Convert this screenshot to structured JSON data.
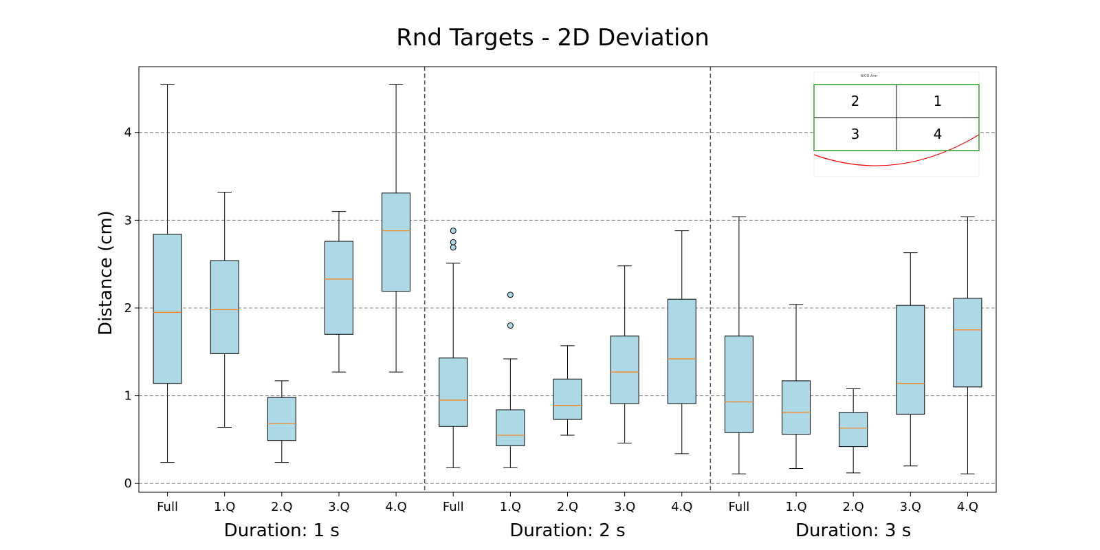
{
  "chart_data": {
    "type": "box",
    "title": "Rnd Targets - 2D Deviation",
    "ylabel": "Distance (cm)",
    "xlabel": "",
    "ylim": [
      -0.1,
      4.75
    ],
    "yticks": [
      0,
      1,
      2,
      3,
      4
    ],
    "grid": "horizontal dashed",
    "colors": {
      "box_fill": "#add8e6",
      "median": "#ff7f0e",
      "separator": "#555555",
      "grid": "#808080",
      "inset_frame": "#2ca02c",
      "inset_curve": "#ff0000"
    },
    "groups": [
      {
        "label": "Duration: 1 s",
        "boxes": [
          {
            "category": "Full",
            "whislo": 0.24,
            "q1": 1.14,
            "med": 1.95,
            "q3": 2.84,
            "whishi": 4.55,
            "fliers": []
          },
          {
            "category": "1.Q",
            "whislo": 0.64,
            "q1": 1.48,
            "med": 1.98,
            "q3": 2.54,
            "whishi": 3.32,
            "fliers": []
          },
          {
            "category": "2.Q",
            "whislo": 0.24,
            "q1": 0.49,
            "med": 0.68,
            "q3": 0.98,
            "whishi": 1.17,
            "fliers": []
          },
          {
            "category": "3.Q",
            "whislo": 1.27,
            "q1": 1.7,
            "med": 2.33,
            "q3": 2.76,
            "whishi": 3.1,
            "fliers": []
          },
          {
            "category": "4.Q",
            "whislo": 1.27,
            "q1": 2.19,
            "med": 2.88,
            "q3": 3.31,
            "whishi": 4.55,
            "fliers": []
          }
        ]
      },
      {
        "label": "Duration: 2 s",
        "boxes": [
          {
            "category": "Full",
            "whislo": 0.18,
            "q1": 0.65,
            "med": 0.95,
            "q3": 1.43,
            "whishi": 2.51,
            "fliers": [
              2.69,
              2.75,
              2.88
            ]
          },
          {
            "category": "1.Q",
            "whislo": 0.18,
            "q1": 0.43,
            "med": 0.55,
            "q3": 0.84,
            "whishi": 1.42,
            "fliers": [
              1.8,
              2.15
            ]
          },
          {
            "category": "2.Q",
            "whislo": 0.55,
            "q1": 0.73,
            "med": 0.89,
            "q3": 1.19,
            "whishi": 1.57,
            "fliers": []
          },
          {
            "category": "3.Q",
            "whislo": 0.46,
            "q1": 0.91,
            "med": 1.27,
            "q3": 1.68,
            "whishi": 2.48,
            "fliers": []
          },
          {
            "category": "4.Q",
            "whislo": 0.34,
            "q1": 0.91,
            "med": 1.42,
            "q3": 2.1,
            "whishi": 2.88,
            "fliers": []
          }
        ]
      },
      {
        "label": "Duration: 3 s",
        "boxes": [
          {
            "category": "Full",
            "whislo": 0.11,
            "q1": 0.58,
            "med": 0.93,
            "q3": 1.68,
            "whishi": 3.04,
            "fliers": []
          },
          {
            "category": "1.Q",
            "whislo": 0.17,
            "q1": 0.56,
            "med": 0.81,
            "q3": 1.17,
            "whishi": 2.04,
            "fliers": []
          },
          {
            "category": "2.Q",
            "whislo": 0.12,
            "q1": 0.42,
            "med": 0.63,
            "q3": 0.81,
            "whishi": 1.08,
            "fliers": []
          },
          {
            "category": "3.Q",
            "whislo": 0.2,
            "q1": 0.79,
            "med": 1.14,
            "q3": 2.03,
            "whishi": 2.63,
            "fliers": []
          },
          {
            "category": "4.Q",
            "whislo": 0.11,
            "q1": 1.1,
            "med": 1.75,
            "q3": 2.11,
            "whishi": 3.04,
            "fliers": []
          }
        ]
      }
    ],
    "inset": {
      "placement": "top-right",
      "caption": "NICO Arm",
      "quadrants": [
        "2",
        "1",
        "3",
        "4"
      ]
    }
  }
}
